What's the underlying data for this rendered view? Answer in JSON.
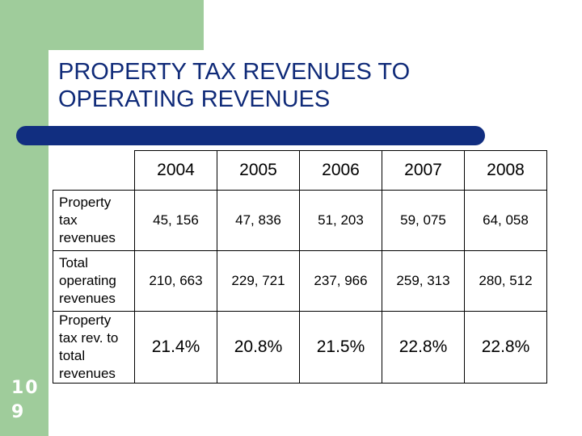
{
  "slide": {
    "title_line1": "PROPERTY TAX REVENUES TO",
    "title_line2": "OPERATING REVENUES",
    "number_line1": "10",
    "number_line2": "9"
  },
  "table": {
    "years": [
      "2004",
      "2005",
      "2006",
      "2007",
      "2008"
    ],
    "rows": [
      {
        "label_lines": [
          "Property",
          "tax",
          "revenues"
        ],
        "values": [
          "45, 156",
          "47, 836",
          "51, 203",
          "59, 075",
          "64, 058"
        ]
      },
      {
        "label_lines": [
          "Total",
          "operating",
          "revenues"
        ],
        "values": [
          "210, 663",
          "229, 721",
          "237, 966",
          "259, 313",
          "280, 512"
        ]
      },
      {
        "label_lines": [
          "Property",
          "tax rev. to",
          "total",
          "revenues"
        ],
        "values": [
          "21.4%",
          "20.8%",
          "21.5%",
          "22.8%",
          "22.8%"
        ]
      }
    ]
  },
  "colors": {
    "green": "#9fcc9b",
    "navy": "#112e80",
    "title": "#0f2a78"
  }
}
